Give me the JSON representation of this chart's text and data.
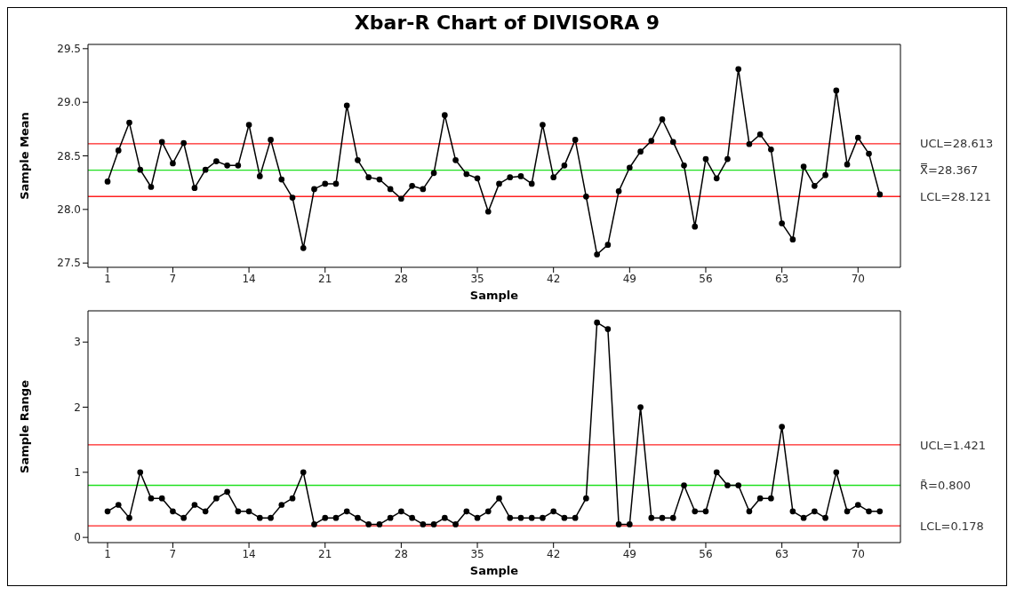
{
  "chart_data": [
    {
      "type": "line",
      "title": "Xbar-R Chart of DIVISORA 9",
      "xlabel": "Sample",
      "ylabel": "Sample Mean",
      "marker": "circle",
      "line_style": "solid",
      "grid": false,
      "legend": false,
      "x": [
        1,
        2,
        3,
        4,
        5,
        6,
        7,
        8,
        9,
        10,
        11,
        12,
        13,
        14,
        15,
        16,
        17,
        18,
        19,
        20,
        21,
        22,
        23,
        24,
        25,
        26,
        27,
        28,
        29,
        30,
        31,
        32,
        33,
        34,
        35,
        36,
        37,
        38,
        39,
        40,
        41,
        42,
        43,
        44,
        45,
        46,
        47,
        48,
        49,
        50,
        51,
        52,
        53,
        54,
        55,
        56,
        57,
        58,
        59,
        60,
        61,
        62,
        63,
        64,
        65,
        66,
        67,
        68,
        69,
        70,
        71,
        72
      ],
      "series": [
        {
          "color": "#000000",
          "values": [
            28.26,
            28.55,
            28.81,
            28.37,
            28.21,
            28.63,
            28.43,
            28.62,
            28.2,
            28.37,
            28.45,
            28.41,
            28.41,
            28.79,
            28.31,
            28.65,
            28.28,
            28.11,
            27.64,
            28.19,
            28.24,
            28.24,
            28.97,
            28.46,
            28.3,
            28.28,
            28.19,
            28.1,
            28.22,
            28.19,
            28.34,
            28.88,
            28.46,
            28.33,
            28.29,
            27.98,
            28.24,
            28.3,
            28.31,
            28.24,
            28.79,
            28.3,
            28.41,
            28.65,
            28.12,
            27.58,
            27.67,
            28.17,
            28.39,
            28.54,
            28.64,
            28.84,
            28.63,
            28.41,
            27.84,
            28.47,
            28.29,
            28.47,
            29.31,
            28.61,
            28.7,
            28.56,
            27.87,
            27.72,
            28.4,
            28.22,
            28.32,
            29.11,
            28.42,
            28.67,
            28.52,
            28.14
          ]
        }
      ],
      "xlim": [
        -0.8,
        73.9
      ],
      "xticks": [
        1,
        7,
        14,
        21,
        28,
        35,
        42,
        49,
        56,
        63,
        70
      ],
      "ylim": [
        27.46,
        29.54
      ],
      "yticks": [
        27.5,
        {
          "value": 28,
          "label": "28.0"
        },
        28.5,
        {
          "value": 29,
          "label": "29.0"
        },
        29.5
      ],
      "ref_lines": [
        {
          "axis": "y",
          "value": 28.613,
          "label": "UCL=28.613",
          "color": "#ff2020"
        },
        {
          "axis": "y",
          "value": 28.367,
          "label": "X̿=28.367",
          "color": "#20e020"
        },
        {
          "axis": "y",
          "value": 28.121,
          "label": "LCL=28.121",
          "color": "#ff2020"
        }
      ]
    },
    {
      "type": "line",
      "xlabel": "Sample",
      "ylabel": "Sample Range",
      "marker": "circle",
      "line_style": "solid",
      "grid": false,
      "legend": false,
      "x": [
        1,
        2,
        3,
        4,
        5,
        6,
        7,
        8,
        9,
        10,
        11,
        12,
        13,
        14,
        15,
        16,
        17,
        18,
        19,
        20,
        21,
        22,
        23,
        24,
        25,
        26,
        27,
        28,
        29,
        30,
        31,
        32,
        33,
        34,
        35,
        36,
        37,
        38,
        39,
        40,
        41,
        42,
        43,
        44,
        45,
        46,
        47,
        48,
        49,
        50,
        51,
        52,
        53,
        54,
        55,
        56,
        57,
        58,
        59,
        60,
        61,
        62,
        63,
        64,
        65,
        66,
        67,
        68,
        69,
        70,
        71,
        72
      ],
      "series": [
        {
          "color": "#000000",
          "values": [
            0.4,
            0.5,
            0.3,
            1.0,
            0.6,
            0.6,
            0.4,
            0.3,
            0.5,
            0.4,
            0.6,
            0.7,
            0.4,
            0.4,
            0.3,
            0.3,
            0.5,
            0.6,
            1.0,
            0.2,
            0.3,
            0.3,
            0.4,
            0.3,
            0.2,
            0.2,
            0.3,
            0.4,
            0.3,
            0.2,
            0.2,
            0.3,
            0.2,
            0.4,
            0.3,
            0.4,
            0.6,
            0.3,
            0.3,
            0.3,
            0.3,
            0.4,
            0.3,
            0.3,
            0.6,
            3.3,
            3.2,
            0.2,
            0.2,
            2.0,
            0.3,
            0.3,
            0.3,
            0.8,
            0.4,
            0.4,
            1.0,
            0.8,
            0.8,
            0.4,
            0.6,
            0.6,
            1.7,
            0.4,
            0.3,
            0.4,
            0.3,
            1.0,
            0.4,
            0.5,
            0.4,
            0.4
          ]
        }
      ],
      "xlim": [
        -0.8,
        73.9
      ],
      "xticks": [
        1,
        7,
        14,
        21,
        28,
        35,
        42,
        49,
        56,
        63,
        70
      ],
      "ylim": [
        -0.08,
        3.48
      ],
      "yticks": [
        0,
        1,
        2,
        3
      ],
      "ref_lines": [
        {
          "axis": "y",
          "value": 1.421,
          "label": "UCL=1.421",
          "color": "#ff2020"
        },
        {
          "axis": "y",
          "value": 0.8,
          "label": "R̄=0.800",
          "color": "#20e020"
        },
        {
          "axis": "y",
          "value": 0.178,
          "label": "LCL=0.178",
          "color": "#ff2020"
        }
      ]
    }
  ]
}
